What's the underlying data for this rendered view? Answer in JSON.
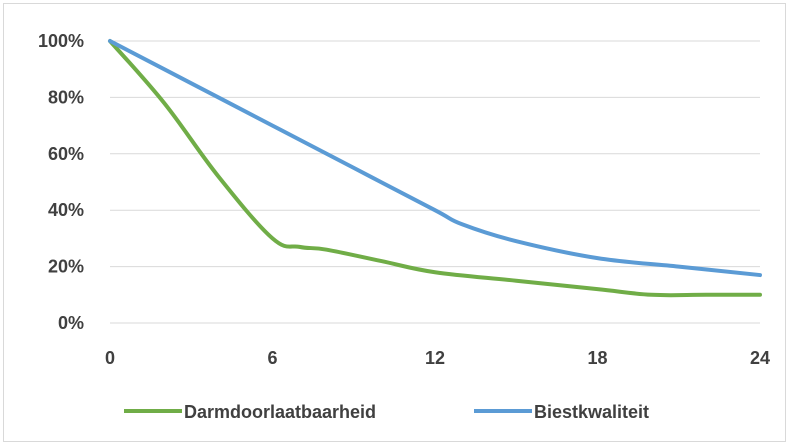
{
  "chart_data": {
    "type": "line",
    "x": [
      0,
      2,
      4,
      6,
      7,
      8,
      10,
      12,
      13,
      15,
      18,
      20,
      22,
      24
    ],
    "xticks": [
      "0",
      "6",
      "12",
      "18",
      "24"
    ],
    "xtick_values": [
      0,
      6,
      12,
      18,
      24
    ],
    "yticks": [
      "0%",
      "20%",
      "40%",
      "60%",
      "80%",
      "100%"
    ],
    "ytick_values": [
      0,
      20,
      40,
      60,
      80,
      100
    ],
    "xlim": [
      0,
      24
    ],
    "ylim": [
      0,
      100
    ],
    "grid": "horizontal",
    "legend_position": "bottom",
    "series": [
      {
        "name": "Darmdoorlaatbaarheid",
        "color": "#70ad47",
        "points": [
          [
            0,
            100
          ],
          [
            2,
            78
          ],
          [
            4,
            52
          ],
          [
            6,
            30
          ],
          [
            7,
            27
          ],
          [
            8,
            26
          ],
          [
            10,
            22
          ],
          [
            12,
            18
          ],
          [
            15,
            15
          ],
          [
            18,
            12
          ],
          [
            20,
            10
          ],
          [
            22,
            10
          ],
          [
            24,
            10
          ]
        ]
      },
      {
        "name": "Biestkwaliteit",
        "color": "#5b9bd5",
        "points": [
          [
            0,
            100
          ],
          [
            3,
            85
          ],
          [
            6,
            70
          ],
          [
            9,
            55
          ],
          [
            12,
            40
          ],
          [
            13,
            35
          ],
          [
            15,
            29
          ],
          [
            18,
            23
          ],
          [
            21,
            20
          ],
          [
            24,
            17
          ]
        ]
      }
    ]
  }
}
